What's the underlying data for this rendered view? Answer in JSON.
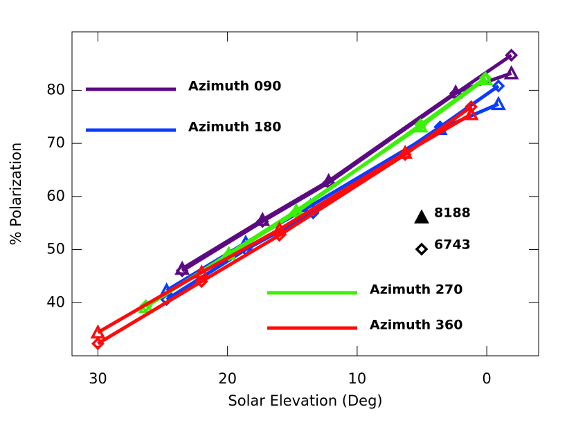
{
  "chart_data": {
    "type": "line",
    "x_label": "Solar Elevation (Deg)",
    "y_label": "% Polarization",
    "xlim": [
      32,
      -4
    ],
    "xticks": [
      30,
      20,
      10,
      0
    ],
    "ylim": [
      30,
      91
    ],
    "yticks": [
      40,
      50,
      60,
      70,
      80
    ],
    "markers": [
      {
        "label": "8188",
        "shape": "triangle"
      },
      {
        "label": "6743",
        "shape": "diamond"
      }
    ],
    "series": [
      {
        "name": "Azimuth 090",
        "color": "#5c0a82",
        "groups": [
          {
            "marker": 0,
            "x": [
              23.5,
              17.3,
              12.2,
              2.4,
              -1.9
            ],
            "values": [
              46.4,
              55.6,
              62.9,
              79.6,
              83.2
            ]
          },
          {
            "marker": 1,
            "x": [
              23.5,
              17.3,
              12.2,
              2.4,
              -1.9
            ],
            "values": [
              46.0,
              55.3,
              62.6,
              79.4,
              86.6
            ]
          }
        ]
      },
      {
        "name": "Azimuth 180",
        "color": "#0a3cff",
        "groups": [
          {
            "marker": 0,
            "x": [
              24.7,
              18.6,
              13.6,
              3.6,
              -0.9
            ],
            "values": [
              42.3,
              51.3,
              58.2,
              72.7,
              77.4
            ]
          },
          {
            "marker": 1,
            "x": [
              24.7,
              18.6,
              13.4,
              3.6,
              -0.9
            ],
            "values": [
              40.6,
              50.0,
              56.9,
              73.1,
              80.8
            ]
          }
        ]
      },
      {
        "name": "Azimuth 270",
        "color": "#3cf00a",
        "groups": [
          {
            "marker": 0,
            "x": [
              26.3,
              19.9,
              14.7,
              5.1,
              0.1
            ],
            "values": [
              39.2,
              49.2,
              57.3,
              73.2,
              82.1
            ]
          },
          {
            "marker": 1,
            "x": [
              26.3,
              19.9,
              14.7,
              5.1,
              0.1
            ],
            "values": [
              39.4,
              49.0,
              57.0,
              73.5,
              82.3
            ]
          }
        ]
      },
      {
        "name": "Azimuth 360",
        "color": "#ff0a0a",
        "groups": [
          {
            "marker": 0,
            "x": [
              30,
              22,
              16,
              6.3,
              1.2
            ],
            "values": [
              34.4,
              45.7,
              53.8,
              68.2,
              75.5
            ]
          },
          {
            "marker": 1,
            "x": [
              30,
              22,
              16,
              6.3,
              1.2
            ],
            "values": [
              32.3,
              44.0,
              52.7,
              67.9,
              76.9
            ]
          }
        ]
      }
    ]
  }
}
